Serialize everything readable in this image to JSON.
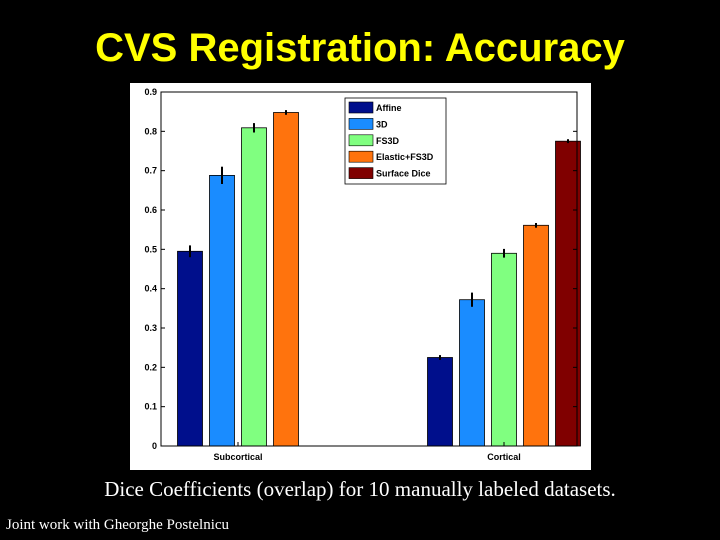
{
  "slide": {
    "title": "CVS Registration: Accuracy",
    "caption": "Dice Coefficients (overlap) for 10 manually labeled datasets.",
    "footnote": "Joint work with Gheorghe Postelnicu"
  },
  "chart_data": {
    "type": "bar",
    "title": "",
    "xlabel": "",
    "ylabel": "",
    "ylim": [
      0,
      0.9
    ],
    "yticks": [
      "0",
      "0.1",
      "0.2",
      "0.3",
      "0.4",
      "0.5",
      "0.6",
      "0.7",
      "0.8",
      "0.9"
    ],
    "categories": [
      "Subcortical",
      "Cortical"
    ],
    "legend_position": "top-right",
    "grid": false,
    "series": [
      {
        "name": "Affine",
        "color": "#000f8c",
        "values": [
          0.495,
          0.225
        ],
        "errors": [
          0.015,
          0.006
        ]
      },
      {
        "name": "3D",
        "color": "#1a8cff",
        "values": [
          0.688,
          0.372
        ],
        "errors": [
          0.022,
          0.018
        ]
      },
      {
        "name": "FS3D",
        "color": "#80ff80",
        "values": [
          0.809,
          0.49
        ],
        "errors": [
          0.012,
          0.011
        ]
      },
      {
        "name": "Elastic+FS3D",
        "color": "#ff730d",
        "values": [
          0.848,
          0.561
        ],
        "errors": [
          0.006,
          0.006
        ]
      },
      {
        "name": "Surface Dice",
        "color": "#800000",
        "values": [
          null,
          0.775
        ],
        "errors": [
          null,
          0.005
        ]
      }
    ]
  }
}
